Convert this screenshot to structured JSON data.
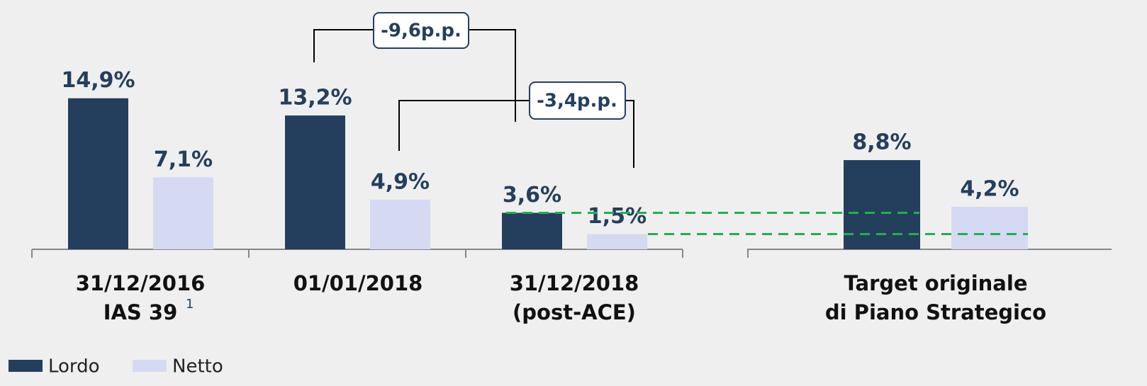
{
  "chart_data": {
    "type": "bar",
    "categories": [
      [
        "31/12/2016",
        "IAS 39"
      ],
      [
        "01/01/2018"
      ],
      [
        "31/12/2018",
        "(post-ACE)"
      ],
      [
        "Target originale",
        "di Piano Strategico"
      ]
    ],
    "category_notes": [
      "1",
      null,
      null,
      null
    ],
    "series": [
      {
        "name": "Lordo",
        "color": "#243f5e",
        "values": [
          14.9,
          13.2,
          3.6,
          8.8
        ],
        "value_labels": [
          "14,9%",
          "13,2%",
          "3,6%",
          "8,8%"
        ]
      },
      {
        "name": "Netto",
        "color": "#d5daf2",
        "values": [
          7.1,
          4.9,
          1.5,
          4.2
        ],
        "value_labels": [
          "7,1%",
          "4,9%",
          "1,5%",
          "4,2%"
        ]
      }
    ],
    "annotations": [
      {
        "text": "-9,6p.p."
      },
      {
        "text": "-3,4p.p."
      }
    ],
    "ylim": [
      0,
      16
    ]
  }
}
